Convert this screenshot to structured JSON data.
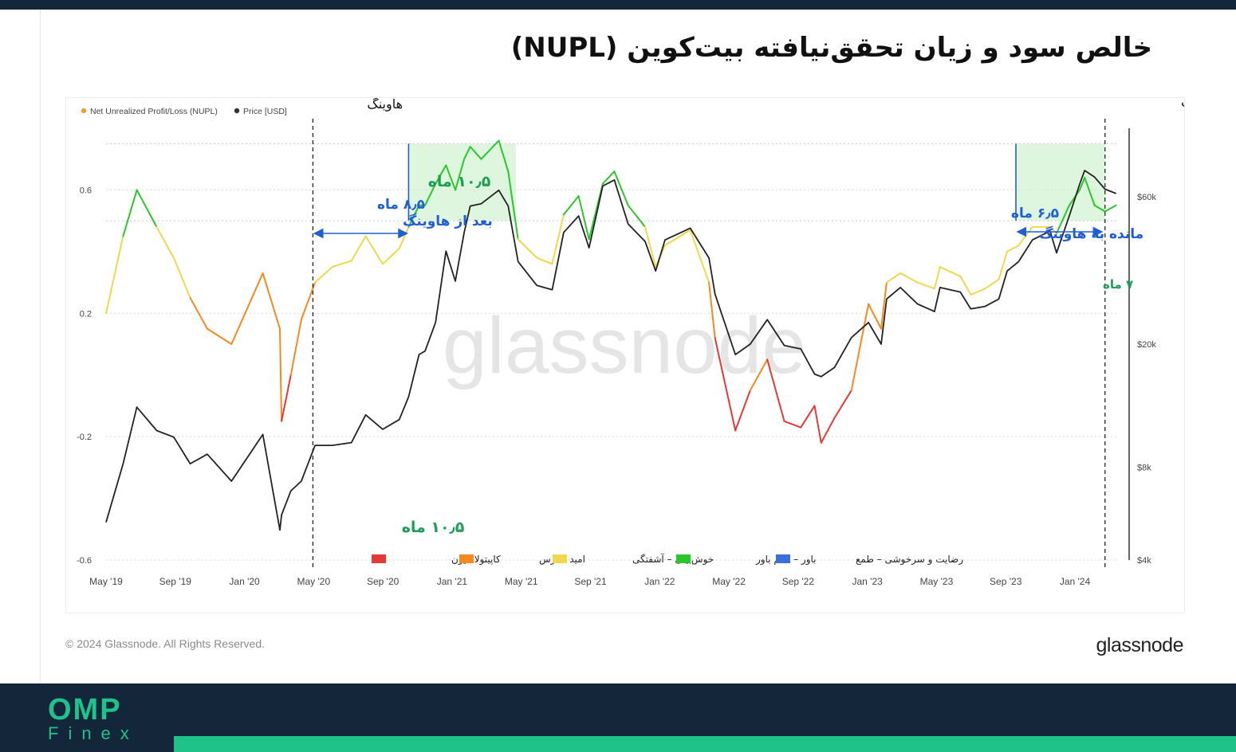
{
  "page": {
    "title": "خالص سود و زیان تحقق‌نیافته بیت‌کوین (NUPL)",
    "copyright": "© 2024 Glassnode. All Rights Reserved.",
    "brand": "glassnode",
    "watermark": "glassnode",
    "footer_logo_main": "OMP",
    "footer_logo_sub": "Finex",
    "colors": {
      "header_bg": "#13263a",
      "footer_accent": "#1fc38a"
    }
  },
  "chart_data": {
    "type": "line",
    "title": "",
    "xlabel": "",
    "ylabel_left": "",
    "ylabel_right": "",
    "legend_top": [
      {
        "name": "Net Unrealized Profit/Loss (NUPL)",
        "color": "#f39c2f"
      },
      {
        "name": "Price [USD]",
        "color": "#333333"
      }
    ],
    "x_ticks": [
      "May '19",
      "Sep '19",
      "Jan '20",
      "May '20",
      "Sep '20",
      "Jan '21",
      "May '21",
      "Sep '21",
      "Jan '22",
      "May '22",
      "Sep '22",
      "Jan '23",
      "May '23",
      "Sep '23",
      "Jan '24"
    ],
    "xlim": [
      "2019-05-01",
      "2024-05-15"
    ],
    "y_left": {
      "ylim": [
        -0.6,
        0.8
      ],
      "ticks": [
        "0.6",
        "0.2",
        "-0.2",
        "-0.6"
      ],
      "tick_values": [
        0.6,
        0.2,
        -0.2,
        -0.6
      ]
    },
    "y_right": {
      "scale": "log",
      "ylim": [
        4000,
        100000
      ],
      "ticks": [
        "$60k",
        "$20k",
        "$8k",
        "$4k"
      ],
      "tick_values": [
        60000,
        20000,
        8000,
        4000
      ]
    },
    "zone_legend": [
      {
        "name": "کاپیتولاسیون",
        "color": "#e53935"
      },
      {
        "name": "امید – ترس",
        "color": "#f5891f"
      },
      {
        "name": "خوش‌بینی – آشفتگی",
        "color": "#f2d64b"
      },
      {
        "name": "باور – عدم باور",
        "color": "#2dc52d"
      },
      {
        "name": "رضایت و سرخوشی – طمع",
        "color": "#3b6fe0"
      }
    ],
    "nupl_thresholds": {
      "capitulation_below": 0.0,
      "hope_fear_below": 0.25,
      "optimism_below": 0.5,
      "belief_below": 0.75
    },
    "nupl_series": {
      "name": "Net Unrealized Profit/Loss (NUPL)",
      "x": [
        "2019-05-01",
        "2019-06-01",
        "2019-06-26",
        "2019-08-01",
        "2019-09-01",
        "2019-10-01",
        "2019-11-01",
        "2019-12-15",
        "2020-02-10",
        "2020-03-12",
        "2020-03-15",
        "2020-04-01",
        "2020-04-20",
        "2020-05-15",
        "2020-06-15",
        "2020-07-20",
        "2020-08-15",
        "2020-09-15",
        "2020-10-15",
        "2020-11-01",
        "2020-11-20",
        "2020-12-01",
        "2020-12-20",
        "2021-01-08",
        "2021-01-25",
        "2021-02-10",
        "2021-02-21",
        "2021-03-13",
        "2021-04-14",
        "2021-05-01",
        "2021-05-19",
        "2021-06-22",
        "2021-07-20",
        "2021-08-10",
        "2021-09-06",
        "2021-09-25",
        "2021-10-20",
        "2021-11-10",
        "2021-12-05",
        "2022-01-05",
        "2022-01-24",
        "2022-02-10",
        "2022-03-28",
        "2022-05-01",
        "2022-05-12",
        "2022-06-18",
        "2022-07-15",
        "2022-08-15",
        "2022-09-15",
        "2022-10-15",
        "2022-11-09",
        "2022-11-21",
        "2022-12-15",
        "2023-01-15",
        "2023-02-15",
        "2023-03-10",
        "2023-03-20",
        "2023-04-14",
        "2023-05-15",
        "2023-06-15",
        "2023-06-25",
        "2023-08-01",
        "2023-08-20",
        "2023-09-15",
        "2023-10-10",
        "2023-10-25",
        "2023-11-15",
        "2023-12-10",
        "2024-01-11",
        "2024-01-23",
        "2024-02-15",
        "2024-03-05",
        "2024-03-14",
        "2024-04-01",
        "2024-04-20",
        "2024-05-10"
      ],
      "values": [
        0.2,
        0.45,
        0.6,
        0.48,
        0.38,
        0.25,
        0.15,
        0.1,
        0.33,
        0.15,
        -0.15,
        0.0,
        0.18,
        0.3,
        0.35,
        0.37,
        0.45,
        0.36,
        0.41,
        0.48,
        0.55,
        0.55,
        0.62,
        0.68,
        0.6,
        0.7,
        0.74,
        0.7,
        0.76,
        0.66,
        0.44,
        0.38,
        0.36,
        0.52,
        0.58,
        0.44,
        0.62,
        0.66,
        0.55,
        0.48,
        0.35,
        0.42,
        0.47,
        0.3,
        0.12,
        -0.18,
        -0.05,
        0.05,
        -0.15,
        -0.17,
        -0.1,
        -0.22,
        -0.14,
        -0.05,
        0.23,
        0.15,
        0.3,
        0.33,
        0.3,
        0.28,
        0.35,
        0.32,
        0.26,
        0.28,
        0.31,
        0.4,
        0.42,
        0.48,
        0.48,
        0.46,
        0.55,
        0.6,
        0.64,
        0.55,
        0.53,
        0.55
      ]
    },
    "price_series": {
      "name": "Price [USD]",
      "x": [
        "2019-05-01",
        "2019-06-01",
        "2019-06-26",
        "2019-08-01",
        "2019-09-01",
        "2019-10-01",
        "2019-11-01",
        "2019-12-15",
        "2020-02-10",
        "2020-03-12",
        "2020-03-15",
        "2020-04-01",
        "2020-04-20",
        "2020-05-15",
        "2020-06-15",
        "2020-07-20",
        "2020-08-15",
        "2020-09-15",
        "2020-10-15",
        "2020-11-01",
        "2020-11-20",
        "2020-12-01",
        "2020-12-20",
        "2021-01-08",
        "2021-01-25",
        "2021-02-10",
        "2021-02-21",
        "2021-03-13",
        "2021-04-14",
        "2021-05-01",
        "2021-05-19",
        "2021-06-22",
        "2021-07-20",
        "2021-08-10",
        "2021-09-06",
        "2021-09-25",
        "2021-10-20",
        "2021-11-10",
        "2021-12-05",
        "2022-01-05",
        "2022-01-24",
        "2022-02-10",
        "2022-03-28",
        "2022-05-01",
        "2022-05-12",
        "2022-06-18",
        "2022-07-15",
        "2022-08-15",
        "2022-09-15",
        "2022-10-15",
        "2022-11-09",
        "2022-11-21",
        "2022-12-15",
        "2023-01-15",
        "2023-02-15",
        "2023-03-10",
        "2023-03-20",
        "2023-04-14",
        "2023-05-15",
        "2023-06-15",
        "2023-06-25",
        "2023-08-01",
        "2023-08-20",
        "2023-09-15",
        "2023-10-10",
        "2023-10-25",
        "2023-11-15",
        "2023-12-10",
        "2024-01-11",
        "2024-01-23",
        "2024-02-15",
        "2024-03-05",
        "2024-03-14",
        "2024-04-01",
        "2024-04-20",
        "2024-05-10"
      ],
      "values": [
        5300,
        8200,
        12500,
        10500,
        10000,
        8200,
        8800,
        7200,
        10200,
        5000,
        5600,
        6700,
        7200,
        9400,
        9400,
        9600,
        11800,
        10600,
        11400,
        13500,
        18500,
        19000,
        23500,
        40000,
        32000,
        46000,
        56000,
        57000,
        63000,
        56000,
        37000,
        31000,
        30000,
        46000,
        52000,
        41000,
        65000,
        68000,
        49000,
        43000,
        34500,
        43500,
        47500,
        38000,
        29000,
        18500,
        20000,
        24000,
        19800,
        19300,
        16000,
        15700,
        16800,
        21000,
        23500,
        20000,
        28000,
        30500,
        27000,
        25500,
        30500,
        29500,
        26000,
        26500,
        28000,
        34500,
        37000,
        43500,
        46500,
        39500,
        52000,
        66000,
        73000,
        69500,
        63500,
        61500
      ]
    },
    "halving_label": "هاوینگ",
    "halvings": [
      "2020-05-11",
      "2024-04-20"
    ],
    "highlight_zones": [
      "2020-11-01",
      "2021-05-15",
      "2023-11-10",
      "2024-04-20"
    ],
    "annotations": {
      "duration_2021": "۱۰٫۵ ماه",
      "bottom_2021": "۱۰٫۵ ماه",
      "after_halving_months": "۸٫۵ ماه",
      "after_halving_text": "بعد از هاوینگ",
      "before_halving_months": "۶٫۵ ماه",
      "before_halving_text": "مانده به هاوینگ",
      "seven_months": "۷ ماه"
    }
  }
}
